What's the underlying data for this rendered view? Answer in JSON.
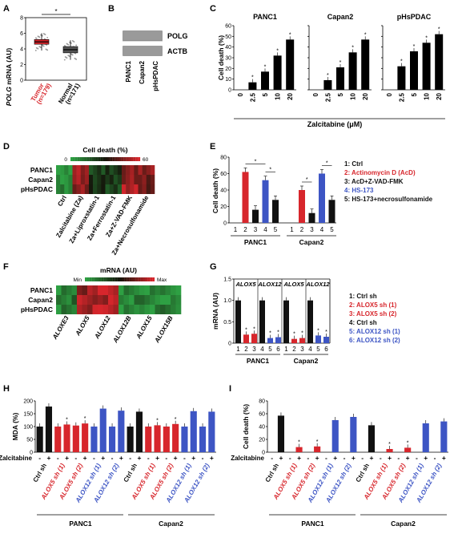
{
  "panels": {
    "A": "A",
    "B": "B",
    "C": "C",
    "D": "D",
    "E": "E",
    "F": "F",
    "G": "G",
    "H": "H",
    "I": "I"
  },
  "colors": {
    "red": "#d7262c",
    "blue": "#3d55c4",
    "black": "#111111",
    "green": "#2ea043",
    "dark": "#2a0000"
  },
  "panel_a": {
    "ylabel_gene": "POLG",
    "ylabel_rest": " mRNA (AU)",
    "yticks": [
      "0",
      "2",
      "4",
      "6",
      "8"
    ],
    "sig": "*",
    "groups": [
      {
        "name": "Tumor",
        "n": "(n=179)",
        "color": "#d7262c",
        "q1": 4.6,
        "median": 4.9,
        "q3": 5.2,
        "whisker_low": 3.8,
        "whisker_high": 6.0
      },
      {
        "name": "Normal",
        "n": "(n=171)",
        "color": "#555555",
        "q1": 3.5,
        "median": 3.9,
        "q3": 4.3,
        "whisker_low": 2.6,
        "whisker_high": 5.1
      }
    ]
  },
  "panel_b": {
    "bands": [
      "POLG",
      "ACTB"
    ],
    "lanes": [
      "PANC1",
      "Capan2",
      "pHsPDAC"
    ]
  },
  "chart_data": [
    {
      "panel": "C",
      "type": "bar",
      "title": "PANC1",
      "ylabel": "Cell death (%)",
      "xlabel": "Zalcitabine (μM)",
      "categories": [
        "0",
        "2.5",
        "5",
        "10",
        "20"
      ],
      "values": [
        0,
        7,
        17,
        32,
        47
      ],
      "ylim": [
        0,
        60
      ],
      "yticks": [
        "0",
        "10",
        "20",
        "30",
        "40",
        "50",
        "60"
      ]
    },
    {
      "panel": "C",
      "type": "bar",
      "title": "Capan2",
      "categories": [
        "0",
        "2.5",
        "5",
        "10",
        "20"
      ],
      "values": [
        0,
        9,
        21,
        35,
        47
      ],
      "ylim": [
        0,
        60
      ]
    },
    {
      "panel": "C",
      "type": "bar",
      "title": "pHsPDAC",
      "categories": [
        "0",
        "2.5",
        "5",
        "10",
        "20"
      ],
      "values": [
        0,
        22,
        36,
        44,
        52
      ],
      "ylim": [
        0,
        60
      ]
    },
    {
      "panel": "D",
      "type": "heatmap",
      "title": "Cell death (%)",
      "scale_min": "0",
      "scale_max": "60",
      "rows": [
        "PANC1",
        "Capan2",
        "pHsPDAC"
      ],
      "columns": [
        "Ctrl",
        "Zalcitabine (Za)",
        "Za+Liproxstatin-1",
        "Za+Ferrostatin-1",
        "Za+Z-VAD-FMK",
        "Za+Necrosulfonamide"
      ],
      "values": [
        [
          3,
          50,
          20,
          24,
          46,
          48
        ],
        [
          2,
          52,
          22,
          22,
          50,
          42
        ],
        [
          5,
          48,
          26,
          18,
          54,
          44
        ]
      ]
    },
    {
      "panel": "E",
      "type": "bar",
      "ylabel": "Cell death (%)",
      "ylim": [
        0,
        80
      ],
      "yticks": [
        "0",
        "20",
        "40",
        "60",
        "80"
      ],
      "categories": [
        "1",
        "2",
        "3",
        "4",
        "5",
        "1",
        "2",
        "3",
        "4",
        "5"
      ],
      "groups": [
        "PANC1",
        "Capan2"
      ],
      "values": [
        0,
        62,
        16,
        52,
        28,
        0,
        40,
        12,
        60,
        28
      ],
      "bar_colors": [
        "#111111",
        "#d7262c",
        "#111111",
        "#3d55c4",
        "#111111",
        "#111111",
        "#d7262c",
        "#111111",
        "#3d55c4",
        "#111111"
      ],
      "legend": [
        {
          "text": "1: Ctrl",
          "color": "#111111"
        },
        {
          "text": "2: Actinomycin D (AcD)",
          "color": "#d7262c"
        },
        {
          "text": "3: AcD+Z-VAD-FMK",
          "color": "#111111"
        },
        {
          "text": "4: HS-173",
          "color": "#3d55c4"
        },
        {
          "text": "5: HS-173+necrosulfonamide",
          "color": "#111111"
        }
      ]
    },
    {
      "panel": "F",
      "type": "heatmap",
      "title": "mRNA (AU)",
      "scale_min": "Min",
      "scale_max": "Max",
      "rows": [
        "PANC1",
        "Capan2",
        "pHsPDAC"
      ],
      "columns": [
        "ALOXE3",
        "ALOX5",
        "ALOX12",
        "ALOX12B",
        "ALOX15",
        "ALOX15B"
      ],
      "values": [
        [
          0.1,
          0.8,
          1.0,
          0.1,
          0.05,
          0.1
        ],
        [
          0.15,
          0.85,
          0.9,
          0.1,
          0.1,
          0.05
        ],
        [
          0.1,
          0.9,
          0.95,
          0.05,
          0.1,
          0.15
        ]
      ]
    },
    {
      "panel": "G",
      "type": "bar",
      "ylabel": "mRNA (AU)",
      "ylim": [
        0,
        1.5
      ],
      "yticks": [
        "0",
        "0.5",
        "1.0",
        "1.5"
      ],
      "gene_labels": [
        "ALOX5",
        "ALOX12",
        "ALOX5",
        "ALOX12"
      ],
      "groups": [
        "PANC1",
        "Capan2"
      ],
      "categories": [
        "1",
        "2",
        "3",
        "4",
        "5",
        "6",
        "1",
        "2",
        "3",
        "4",
        "5",
        "6"
      ],
      "values": [
        1.0,
        0.2,
        0.22,
        1.0,
        0.12,
        0.14,
        1.0,
        0.1,
        0.12,
        1.0,
        0.18,
        0.15
      ],
      "bar_colors": [
        "#111111",
        "#d7262c",
        "#d7262c",
        "#111111",
        "#3d55c4",
        "#3d55c4",
        "#111111",
        "#d7262c",
        "#d7262c",
        "#111111",
        "#3d55c4",
        "#3d55c4"
      ],
      "legend": [
        {
          "text": "1: Ctrl sh",
          "color": "#111111"
        },
        {
          "text": "2: ALOX5 sh (1)",
          "color": "#d7262c"
        },
        {
          "text": "3: ALOX5 sh (2)",
          "color": "#d7262c"
        },
        {
          "text": "4: Ctrl sh",
          "color": "#111111"
        },
        {
          "text": "5: ALOX12 sh (1)",
          "color": "#3d55c4"
        },
        {
          "text": "6: ALOX12 sh (2)",
          "color": "#3d55c4"
        }
      ]
    },
    {
      "panel": "H",
      "type": "bar",
      "ylabel": "MDA (%)",
      "ylim": [
        0,
        200
      ],
      "yticks": [
        "0",
        "50",
        "100",
        "150",
        "200"
      ],
      "conditions": [
        {
          "name": "Ctrl sh",
          "color": "#111111"
        },
        {
          "name": "ALOX5 sh (1)",
          "color": "#d7262c"
        },
        {
          "name": "ALOX5 sh (2)",
          "color": "#d7262c"
        },
        {
          "name": "ALOX12 sh (1)",
          "color": "#3d55c4"
        },
        {
          "name": "ALOX12 sh (2)",
          "color": "#3d55c4"
        }
      ],
      "treatment_label": "Zalcitabine",
      "treatment": [
        "-",
        "+"
      ],
      "groups": [
        "PANC1",
        "Capan2"
      ],
      "values": [
        100,
        178,
        100,
        108,
        104,
        112,
        100,
        170,
        100,
        162,
        100,
        158,
        100,
        105,
        100,
        110,
        100,
        160,
        100,
        158
      ]
    },
    {
      "panel": "I",
      "type": "bar",
      "ylabel": "Cell death (%)",
      "ylim": [
        0,
        80
      ],
      "yticks": [
        "0",
        "20",
        "40",
        "60",
        "80"
      ],
      "conditions": [
        {
          "name": "Ctrl sh",
          "color": "#111111"
        },
        {
          "name": "ALOX5 sh (1)",
          "color": "#d7262c"
        },
        {
          "name": "ALOX5 sh (2)",
          "color": "#d7262c"
        },
        {
          "name": "ALOX12 sh (1)",
          "color": "#3d55c4"
        },
        {
          "name": "ALOX12 sh (2)",
          "color": "#3d55c4"
        }
      ],
      "treatment_label": "Zalcitabine",
      "treatment": [
        "-",
        "+"
      ],
      "groups": [
        "PANC1",
        "Capan2"
      ],
      "values": [
        0,
        57,
        0,
        8,
        0,
        9,
        0,
        50,
        0,
        55,
        0,
        42,
        0,
        5,
        0,
        7,
        0,
        45,
        0,
        48
      ]
    }
  ]
}
